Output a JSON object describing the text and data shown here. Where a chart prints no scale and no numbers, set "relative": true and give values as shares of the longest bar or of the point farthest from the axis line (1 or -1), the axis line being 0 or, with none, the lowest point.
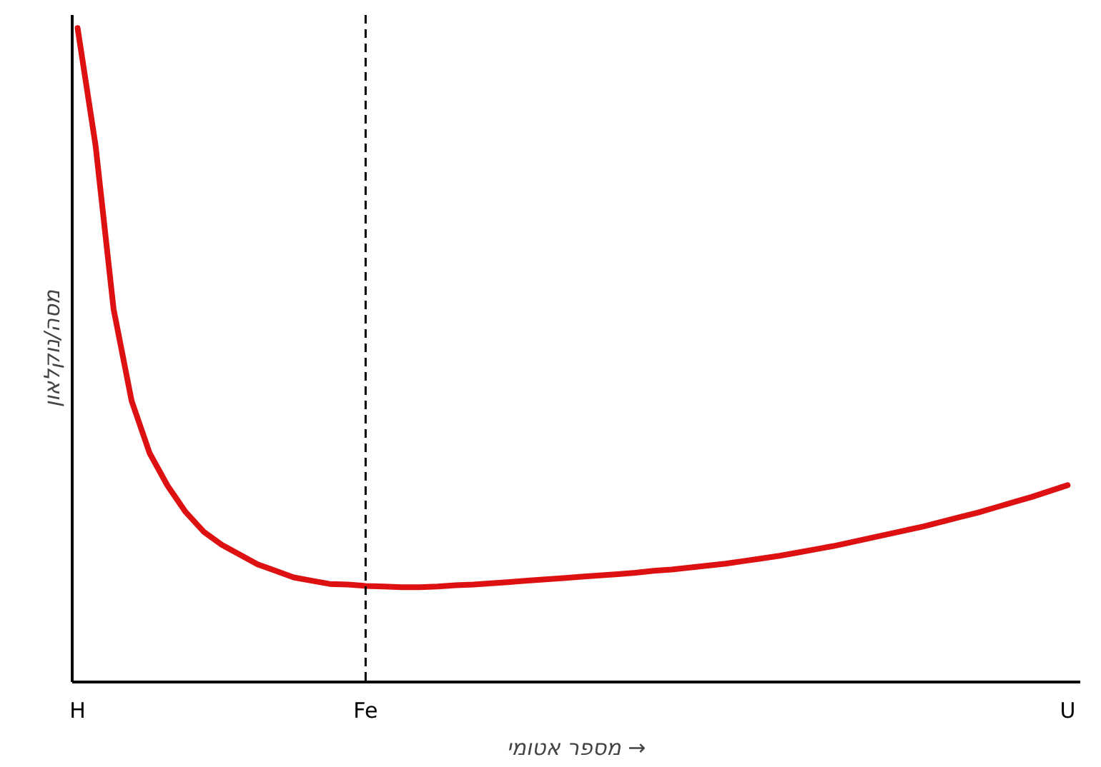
{
  "chart_data": {
    "type": "line",
    "relative": true,
    "xlabel": "מספר אטומי →",
    "ylabel": "מסה/נוקלאון",
    "color": "#dd1111",
    "categories": [
      "H",
      null,
      null,
      null,
      null,
      null,
      null,
      null,
      null,
      null,
      null,
      null,
      null,
      null,
      null,
      null,
      "Fe",
      null,
      null,
      null,
      null,
      null,
      null,
      null,
      null,
      null,
      null,
      null,
      null,
      null,
      null,
      null,
      null,
      null,
      null,
      null,
      null,
      null,
      null,
      null,
      null,
      null,
      null,
      null,
      null,
      null,
      null,
      null,
      null,
      null,
      null,
      null,
      null,
      null,
      null,
      "U"
    ],
    "values": [
      1.0,
      0.82,
      0.57,
      0.43,
      0.35,
      0.3,
      0.26,
      0.23,
      0.21,
      0.195,
      0.18,
      0.17,
      0.16,
      0.155,
      0.15,
      0.149,
      0.147,
      0.146,
      0.145,
      0.145,
      0.146,
      0.148,
      0.149,
      0.151,
      0.153,
      0.155,
      0.157,
      0.159,
      0.161,
      0.163,
      0.165,
      0.167,
      0.17,
      0.172,
      0.175,
      0.178,
      0.181,
      0.185,
      0.189,
      0.193,
      0.198,
      0.203,
      0.208,
      0.214,
      0.22,
      0.226,
      0.232,
      0.238,
      0.245,
      0.252,
      0.259,
      0.267,
      0.275,
      0.283,
      0.292,
      0.301
    ],
    "ref_lines": [
      {
        "axis": "x",
        "value": "Fe",
        "color": "#000000",
        "line_style": "dashed"
      }
    ],
    "grid": false
  }
}
